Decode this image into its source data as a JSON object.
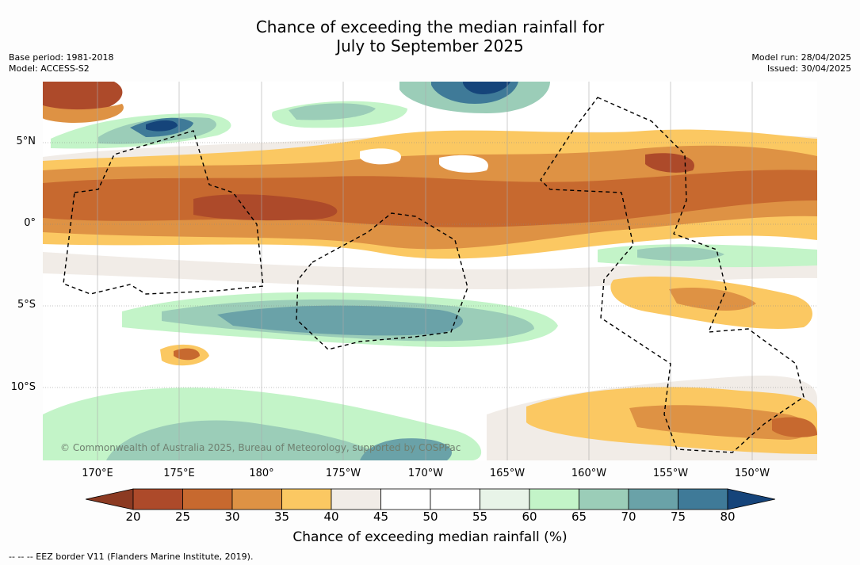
{
  "title": {
    "line1": "Chance of exceeding the median rainfall for",
    "line2": "July to September 2025"
  },
  "meta_left": {
    "base_period": "Base period: 1981-2018",
    "model": "Model: ACCESS-S2"
  },
  "meta_right": {
    "model_run": "Model run: 28/04/2025",
    "issued": "Issued: 30/04/2025"
  },
  "map": {
    "latitude_labels": [
      "5°N",
      "0°",
      "5°S",
      "10°S"
    ],
    "longitude_labels": [
      "170°E",
      "175°E",
      "180°",
      "175°W",
      "170°W",
      "165°W",
      "160°W",
      "155°W",
      "150°W"
    ],
    "copyright": "© Commonwealth of Australia 2025, Bureau of Meteorology, supported by COSPPac",
    "gridlines": true
  },
  "colorbar": {
    "title": "Chance of exceeding median rainfall (%)",
    "ticks": [
      "20",
      "25",
      "30",
      "35",
      "40",
      "45",
      "50",
      "55",
      "60",
      "65",
      "70",
      "75",
      "80"
    ],
    "below_color": "#8c3a22",
    "above_color": "#15447a",
    "bin_colors": [
      "#ad4a2a",
      "#c7692f",
      "#de9244",
      "#fbc862",
      "#f1ece7",
      "#ffffff",
      "#ffffff",
      "#e8f4e8",
      "#c3f4c8",
      "#9bcdb8",
      "#6aa2a8",
      "#3f7a98"
    ]
  },
  "legend_note": "--  --  -- EEZ border V11 (Flanders Marine Institute, 2019)."
}
